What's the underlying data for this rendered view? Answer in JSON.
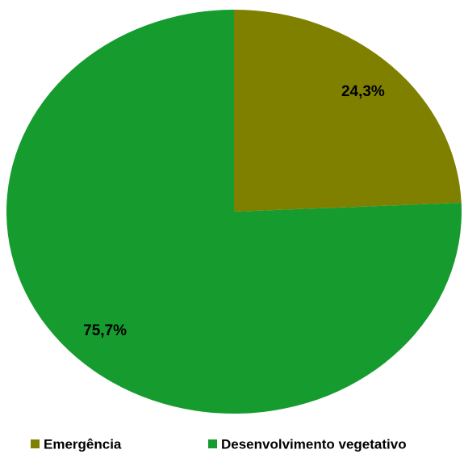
{
  "chart_data": {
    "type": "pie",
    "categories": [
      "Emergência",
      "Desenvolvimento vegetativo"
    ],
    "values": [
      24.3,
      75.7
    ],
    "value_labels": [
      "24,3%",
      "75,7%"
    ],
    "colors": [
      "#808000",
      "#169b2f"
    ],
    "legend": "bottom"
  }
}
